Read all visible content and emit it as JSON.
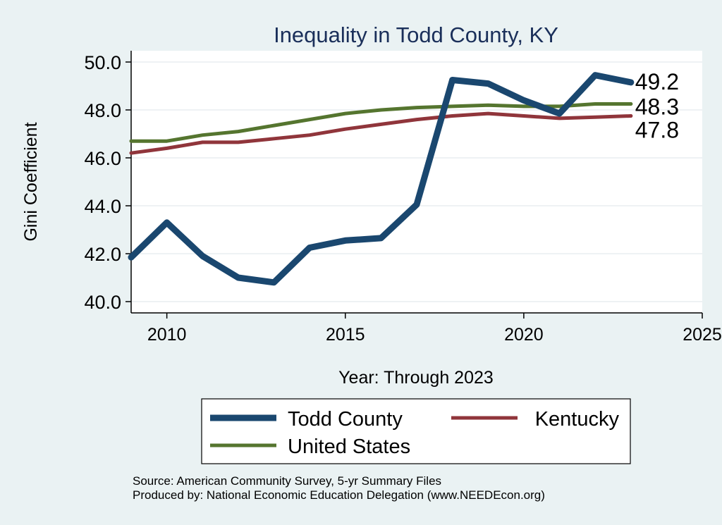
{
  "chart_data": {
    "type": "line",
    "title": "Inequality in Todd County, KY",
    "xlabel": "Year: Through 2023",
    "ylabel": "Gini Coefficient",
    "xlim": [
      2009,
      2025
    ],
    "ylim": [
      40,
      50
    ],
    "x_ticks": [
      2010,
      2015,
      2020,
      2025
    ],
    "y_ticks": [
      40,
      42,
      44,
      46,
      48,
      50
    ],
    "y_tick_labels": [
      "40.0",
      "42.0",
      "44.0",
      "46.0",
      "48.0",
      "50.0"
    ],
    "grid": true,
    "legend_position": "bottom",
    "x": [
      2009,
      2010,
      2011,
      2012,
      2013,
      2014,
      2015,
      2016,
      2017,
      2018,
      2019,
      2020,
      2021,
      2022,
      2023
    ],
    "series": [
      {
        "name": "Todd County",
        "color": "#1a476f",
        "values": [
          41.85,
          43.3,
          41.9,
          41.0,
          40.8,
          42.25,
          42.55,
          42.65,
          44.05,
          49.25,
          49.1,
          48.4,
          47.85,
          49.45,
          49.15
        ],
        "end_label": "49.2"
      },
      {
        "name": "Kentucky",
        "color": "#90353b",
        "values": [
          46.2,
          46.4,
          46.65,
          46.65,
          46.8,
          46.95,
          47.2,
          47.4,
          47.6,
          47.75,
          47.85,
          47.75,
          47.65,
          47.7,
          47.75
        ],
        "end_label": "47.8"
      },
      {
        "name": "United States",
        "color": "#55752f",
        "values": [
          46.7,
          46.7,
          46.95,
          47.1,
          47.35,
          47.6,
          47.85,
          48.0,
          48.1,
          48.15,
          48.2,
          48.15,
          48.15,
          48.25,
          48.25
        ],
        "end_label": "48.3"
      }
    ],
    "notes": [
      "Source: American Community Survey, 5-yr Summary Files",
      "Produced by: National Economic Education Delegation (www.NEEDEcon.org)"
    ]
  }
}
